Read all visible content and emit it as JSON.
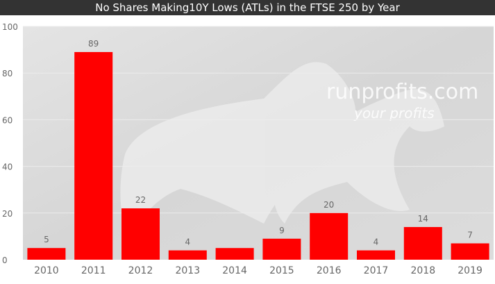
{
  "chart_data": {
    "type": "bar",
    "title": "No Shares Making10Y Lows (ATLs) in the FTSE 250 by Year",
    "categories": [
      "2010",
      "2011",
      "2012",
      "2013",
      "2014",
      "2015",
      "2016",
      "2017",
      "2018",
      "2019"
    ],
    "values": [
      5,
      89,
      22,
      4,
      5,
      9,
      20,
      4,
      14,
      7
    ],
    "data_labels": [
      "5",
      "89",
      "22",
      "4",
      null,
      "9",
      "20",
      "4",
      "14",
      "7"
    ],
    "ylim": [
      0,
      100
    ],
    "yticks": [
      "0",
      "20",
      "40",
      "60",
      "80",
      "100"
    ],
    "xlabel": "",
    "ylabel": "",
    "grid": true,
    "bar_color": "#ff0000",
    "watermark": {
      "line1": "runprofits.com",
      "line2": "your profits"
    }
  }
}
